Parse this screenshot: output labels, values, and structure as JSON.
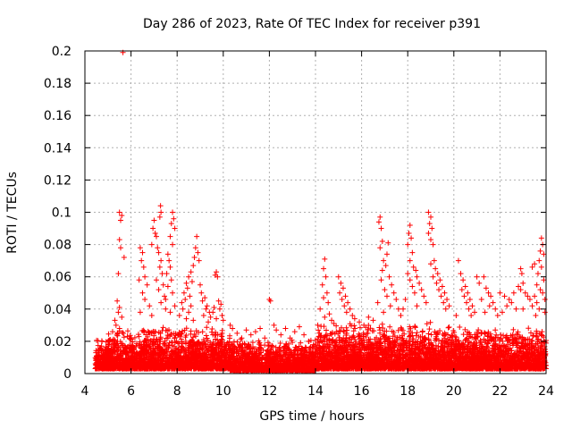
{
  "chart_data": {
    "type": "scatter",
    "title": "Day 286 of 2023, Rate Of TEC Index for receiver p391",
    "xlabel": "GPS time / hours",
    "ylabel": "ROTI / TECUs",
    "xlim": [
      4,
      24
    ],
    "ylim": [
      0,
      0.2
    ],
    "grid": true,
    "marker": "+",
    "color": "#ff0000",
    "x_ticks": [
      "4",
      "6",
      "8",
      "10",
      "12",
      "14",
      "16",
      "18",
      "20",
      "22",
      "24"
    ],
    "y_ticks": [
      "0",
      "0.02",
      "0.04",
      "0.06",
      "0.08",
      "0.1",
      "0.12",
      "0.14",
      "0.16",
      "0.18",
      "0.2"
    ],
    "series": [
      {
        "name": "p391",
        "points": [
          [
            5.65,
            0.199
          ],
          [
            5.5,
            0.1
          ],
          [
            5.6,
            0.098
          ],
          [
            5.55,
            0.095
          ],
          [
            5.5,
            0.083
          ],
          [
            5.55,
            0.078
          ],
          [
            5.7,
            0.072
          ],
          [
            5.45,
            0.062
          ],
          [
            5.4,
            0.045
          ],
          [
            5.5,
            0.041
          ],
          [
            5.45,
            0.038
          ],
          [
            5.6,
            0.035
          ],
          [
            5.3,
            0.033
          ],
          [
            5.35,
            0.03
          ],
          [
            5.5,
            0.028
          ],
          [
            5.2,
            0.026
          ],
          [
            6.4,
            0.078
          ],
          [
            6.5,
            0.075
          ],
          [
            6.45,
            0.07
          ],
          [
            6.55,
            0.066
          ],
          [
            6.6,
            0.06
          ],
          [
            6.35,
            0.058
          ],
          [
            6.7,
            0.055
          ],
          [
            6.5,
            0.05
          ],
          [
            6.6,
            0.046
          ],
          [
            6.8,
            0.042
          ],
          [
            6.4,
            0.038
          ],
          [
            6.9,
            0.036
          ],
          [
            7.0,
            0.095
          ],
          [
            6.95,
            0.09
          ],
          [
            7.05,
            0.087
          ],
          [
            7.1,
            0.085
          ],
          [
            6.9,
            0.08
          ],
          [
            7.15,
            0.078
          ],
          [
            7.2,
            0.075
          ],
          [
            7.3,
            0.07
          ],
          [
            7.25,
            0.066
          ],
          [
            7.35,
            0.062
          ],
          [
            7.1,
            0.058
          ],
          [
            7.4,
            0.055
          ],
          [
            7.2,
            0.052
          ],
          [
            7.45,
            0.048
          ],
          [
            7.3,
            0.044
          ],
          [
            7.5,
            0.04
          ],
          [
            7.28,
            0.104
          ],
          [
            7.3,
            0.1
          ],
          [
            7.25,
            0.097
          ],
          [
            7.8,
            0.1
          ],
          [
            7.85,
            0.096
          ],
          [
            7.75,
            0.093
          ],
          [
            7.9,
            0.09
          ],
          [
            7.7,
            0.085
          ],
          [
            7.8,
            0.08
          ],
          [
            7.6,
            0.074
          ],
          [
            7.65,
            0.07
          ],
          [
            7.7,
            0.066
          ],
          [
            7.55,
            0.062
          ],
          [
            7.75,
            0.058
          ],
          [
            7.6,
            0.054
          ],
          [
            7.8,
            0.05
          ],
          [
            7.5,
            0.046
          ],
          [
            7.9,
            0.042
          ],
          [
            7.7,
            0.038
          ],
          [
            8.85,
            0.085
          ],
          [
            8.8,
            0.078
          ],
          [
            8.9,
            0.075
          ],
          [
            8.75,
            0.072
          ],
          [
            8.95,
            0.07
          ],
          [
            8.7,
            0.067
          ],
          [
            8.6,
            0.063
          ],
          [
            8.5,
            0.06
          ],
          [
            8.65,
            0.057
          ],
          [
            8.4,
            0.056
          ],
          [
            8.45,
            0.053
          ],
          [
            8.3,
            0.05
          ],
          [
            8.55,
            0.048
          ],
          [
            8.35,
            0.046
          ],
          [
            8.2,
            0.044
          ],
          [
            8.6,
            0.042
          ],
          [
            8.25,
            0.04
          ],
          [
            8.5,
            0.038
          ],
          [
            8.1,
            0.036
          ],
          [
            8.4,
            0.034
          ],
          [
            8.7,
            0.033
          ],
          [
            9.0,
            0.055
          ],
          [
            9.05,
            0.05
          ],
          [
            9.2,
            0.047
          ],
          [
            9.1,
            0.045
          ],
          [
            9.3,
            0.042
          ],
          [
            9.25,
            0.04
          ],
          [
            9.4,
            0.038
          ],
          [
            9.15,
            0.036
          ],
          [
            9.45,
            0.035
          ],
          [
            9.35,
            0.032
          ],
          [
            9.7,
            0.063
          ],
          [
            9.65,
            0.061
          ],
          [
            9.75,
            0.06
          ],
          [
            9.8,
            0.045
          ],
          [
            9.9,
            0.043
          ],
          [
            9.6,
            0.041
          ],
          [
            9.85,
            0.04
          ],
          [
            9.55,
            0.038
          ],
          [
            9.95,
            0.036
          ],
          [
            9.7,
            0.034
          ],
          [
            10.0,
            0.033
          ],
          [
            10.3,
            0.03
          ],
          [
            10.4,
            0.028
          ],
          [
            10.6,
            0.025
          ],
          [
            10.8,
            0.022
          ],
          [
            11.0,
            0.027
          ],
          [
            11.2,
            0.024
          ],
          [
            11.4,
            0.026
          ],
          [
            11.6,
            0.028
          ],
          [
            11.8,
            0.022
          ],
          [
            12.0,
            0.046
          ],
          [
            12.05,
            0.045
          ],
          [
            12.2,
            0.03
          ],
          [
            12.3,
            0.027
          ],
          [
            12.5,
            0.024
          ],
          [
            12.7,
            0.028
          ],
          [
            12.9,
            0.022
          ],
          [
            13.1,
            0.026
          ],
          [
            13.3,
            0.029
          ],
          [
            13.5,
            0.024
          ],
          [
            13.7,
            0.02
          ],
          [
            14.4,
            0.071
          ],
          [
            14.35,
            0.065
          ],
          [
            14.45,
            0.06
          ],
          [
            14.3,
            0.055
          ],
          [
            14.5,
            0.05
          ],
          [
            14.35,
            0.047
          ],
          [
            14.55,
            0.044
          ],
          [
            14.2,
            0.04
          ],
          [
            14.6,
            0.037
          ],
          [
            14.4,
            0.035
          ],
          [
            14.7,
            0.033
          ],
          [
            14.8,
            0.031
          ],
          [
            14.1,
            0.03
          ],
          [
            15.0,
            0.06
          ],
          [
            15.1,
            0.056
          ],
          [
            15.2,
            0.053
          ],
          [
            15.05,
            0.05
          ],
          [
            15.3,
            0.048
          ],
          [
            15.15,
            0.046
          ],
          [
            15.4,
            0.044
          ],
          [
            15.25,
            0.042
          ],
          [
            15.5,
            0.04
          ],
          [
            15.35,
            0.038
          ],
          [
            15.6,
            0.036
          ],
          [
            15.7,
            0.034
          ],
          [
            15.9,
            0.032
          ],
          [
            16.1,
            0.03
          ],
          [
            16.3,
            0.035
          ],
          [
            16.5,
            0.033
          ],
          [
            16.8,
            0.097
          ],
          [
            16.75,
            0.094
          ],
          [
            16.85,
            0.09
          ],
          [
            16.9,
            0.082
          ],
          [
            16.8,
            0.078
          ],
          [
            17.15,
            0.081
          ],
          [
            17.1,
            0.074
          ],
          [
            16.95,
            0.07
          ],
          [
            17.05,
            0.067
          ],
          [
            16.9,
            0.064
          ],
          [
            17.2,
            0.06
          ],
          [
            16.85,
            0.058
          ],
          [
            17.3,
            0.055
          ],
          [
            17.0,
            0.052
          ],
          [
            17.4,
            0.05
          ],
          [
            17.1,
            0.048
          ],
          [
            17.5,
            0.046
          ],
          [
            16.7,
            0.044
          ],
          [
            17.25,
            0.042
          ],
          [
            17.6,
            0.04
          ],
          [
            16.95,
            0.038
          ],
          [
            17.7,
            0.036
          ],
          [
            18.1,
            0.092
          ],
          [
            18.05,
            0.087
          ],
          [
            18.15,
            0.084
          ],
          [
            18.0,
            0.08
          ],
          [
            18.2,
            0.075
          ],
          [
            18.1,
            0.07
          ],
          [
            18.25,
            0.066
          ],
          [
            18.35,
            0.064
          ],
          [
            18.0,
            0.062
          ],
          [
            18.4,
            0.06
          ],
          [
            18.1,
            0.058
          ],
          [
            18.5,
            0.056
          ],
          [
            18.2,
            0.054
          ],
          [
            18.6,
            0.052
          ],
          [
            18.3,
            0.05
          ],
          [
            18.7,
            0.048
          ],
          [
            17.9,
            0.046
          ],
          [
            18.8,
            0.044
          ],
          [
            18.4,
            0.042
          ],
          [
            17.8,
            0.04
          ],
          [
            18.9,
            0.1
          ],
          [
            19.0,
            0.097
          ],
          [
            18.95,
            0.093
          ],
          [
            19.05,
            0.09
          ],
          [
            18.9,
            0.087
          ],
          [
            19.0,
            0.083
          ],
          [
            19.1,
            0.08
          ],
          [
            19.15,
            0.07
          ],
          [
            19.0,
            0.068
          ],
          [
            19.2,
            0.065
          ],
          [
            19.3,
            0.062
          ],
          [
            19.1,
            0.06
          ],
          [
            19.4,
            0.058
          ],
          [
            19.25,
            0.056
          ],
          [
            19.5,
            0.054
          ],
          [
            19.35,
            0.052
          ],
          [
            19.6,
            0.05
          ],
          [
            19.45,
            0.048
          ],
          [
            19.7,
            0.046
          ],
          [
            19.55,
            0.044
          ],
          [
            19.8,
            0.042
          ],
          [
            19.65,
            0.04
          ],
          [
            20.2,
            0.07
          ],
          [
            20.3,
            0.062
          ],
          [
            20.4,
            0.058
          ],
          [
            20.5,
            0.054
          ],
          [
            20.35,
            0.052
          ],
          [
            20.6,
            0.05
          ],
          [
            20.45,
            0.048
          ],
          [
            20.7,
            0.046
          ],
          [
            20.55,
            0.044
          ],
          [
            20.8,
            0.042
          ],
          [
            20.65,
            0.04
          ],
          [
            20.9,
            0.038
          ],
          [
            20.1,
            0.036
          ],
          [
            20.75,
            0.036
          ],
          [
            21.0,
            0.06
          ],
          [
            21.1,
            0.056
          ],
          [
            21.3,
            0.06
          ],
          [
            21.4,
            0.053
          ],
          [
            21.5,
            0.05
          ],
          [
            21.6,
            0.048
          ],
          [
            21.2,
            0.046
          ],
          [
            21.7,
            0.044
          ],
          [
            21.55,
            0.042
          ],
          [
            21.8,
            0.04
          ],
          [
            21.35,
            0.038
          ],
          [
            21.9,
            0.036
          ],
          [
            22.0,
            0.05
          ],
          [
            22.2,
            0.048
          ],
          [
            22.4,
            0.046
          ],
          [
            22.6,
            0.05
          ],
          [
            22.8,
            0.054
          ],
          [
            22.9,
            0.052
          ],
          [
            23.0,
            0.056
          ],
          [
            23.1,
            0.05
          ],
          [
            23.2,
            0.048
          ],
          [
            23.3,
            0.046
          ],
          [
            22.5,
            0.044
          ],
          [
            22.3,
            0.042
          ],
          [
            22.7,
            0.04
          ],
          [
            23.0,
            0.04
          ],
          [
            22.1,
            0.038
          ],
          [
            22.9,
            0.065
          ],
          [
            22.95,
            0.062
          ],
          [
            23.5,
            0.068
          ],
          [
            23.4,
            0.066
          ],
          [
            23.8,
            0.084
          ],
          [
            23.85,
            0.08
          ],
          [
            23.75,
            0.076
          ],
          [
            23.9,
            0.074
          ],
          [
            23.7,
            0.07
          ],
          [
            23.8,
            0.066
          ],
          [
            23.65,
            0.062
          ],
          [
            23.9,
            0.058
          ],
          [
            23.6,
            0.055
          ],
          [
            23.75,
            0.052
          ],
          [
            23.85,
            0.05
          ],
          [
            23.5,
            0.048
          ],
          [
            23.95,
            0.046
          ],
          [
            23.6,
            0.044
          ],
          [
            23.4,
            0.042
          ],
          [
            23.7,
            0.04
          ],
          [
            23.95,
            0.038
          ],
          [
            23.55,
            0.036
          ]
        ]
      }
    ],
    "noise_band": {
      "segments": [
        [
          4.45,
          5.0,
          0.003,
          0.022
        ],
        [
          5.0,
          6.5,
          0.003,
          0.028
        ],
        [
          6.5,
          10.3,
          0.003,
          0.03
        ],
        [
          10.3,
          14.0,
          0.002,
          0.022
        ],
        [
          14.0,
          20.0,
          0.003,
          0.032
        ],
        [
          20.0,
          24.0,
          0.003,
          0.03
        ]
      ]
    }
  }
}
